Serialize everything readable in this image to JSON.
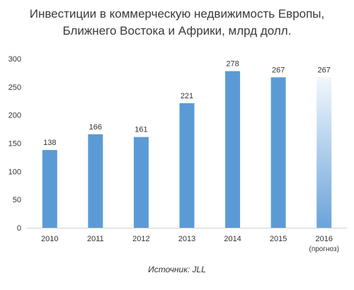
{
  "chart_data": {
    "type": "bar",
    "title_lines": [
      "Инвестиции в  коммерческую недвижимость Европы,",
      "Ближнего  Востока и Африки, млрд долл."
    ],
    "categories": [
      "2010",
      "2011",
      "2012",
      "2013",
      "2014",
      "2015",
      "2016"
    ],
    "category_notes": [
      "",
      "",
      "",
      "",
      "",
      "",
      "(прогноз)"
    ],
    "values": [
      138,
      166,
      161,
      221,
      278,
      267,
      267
    ],
    "forecast_index": 6,
    "ylim": [
      0,
      300
    ],
    "yticks": [
      0,
      50,
      100,
      150,
      200,
      250,
      300
    ],
    "grid": false,
    "xlabel": "",
    "ylabel": "",
    "source": "Источник: JLL",
    "colors": {
      "bar": "#5b9bd5",
      "forecast_top": "#f2f7fc",
      "forecast_bottom": "#6aa3da",
      "axis": "#d0d0d0"
    }
  }
}
